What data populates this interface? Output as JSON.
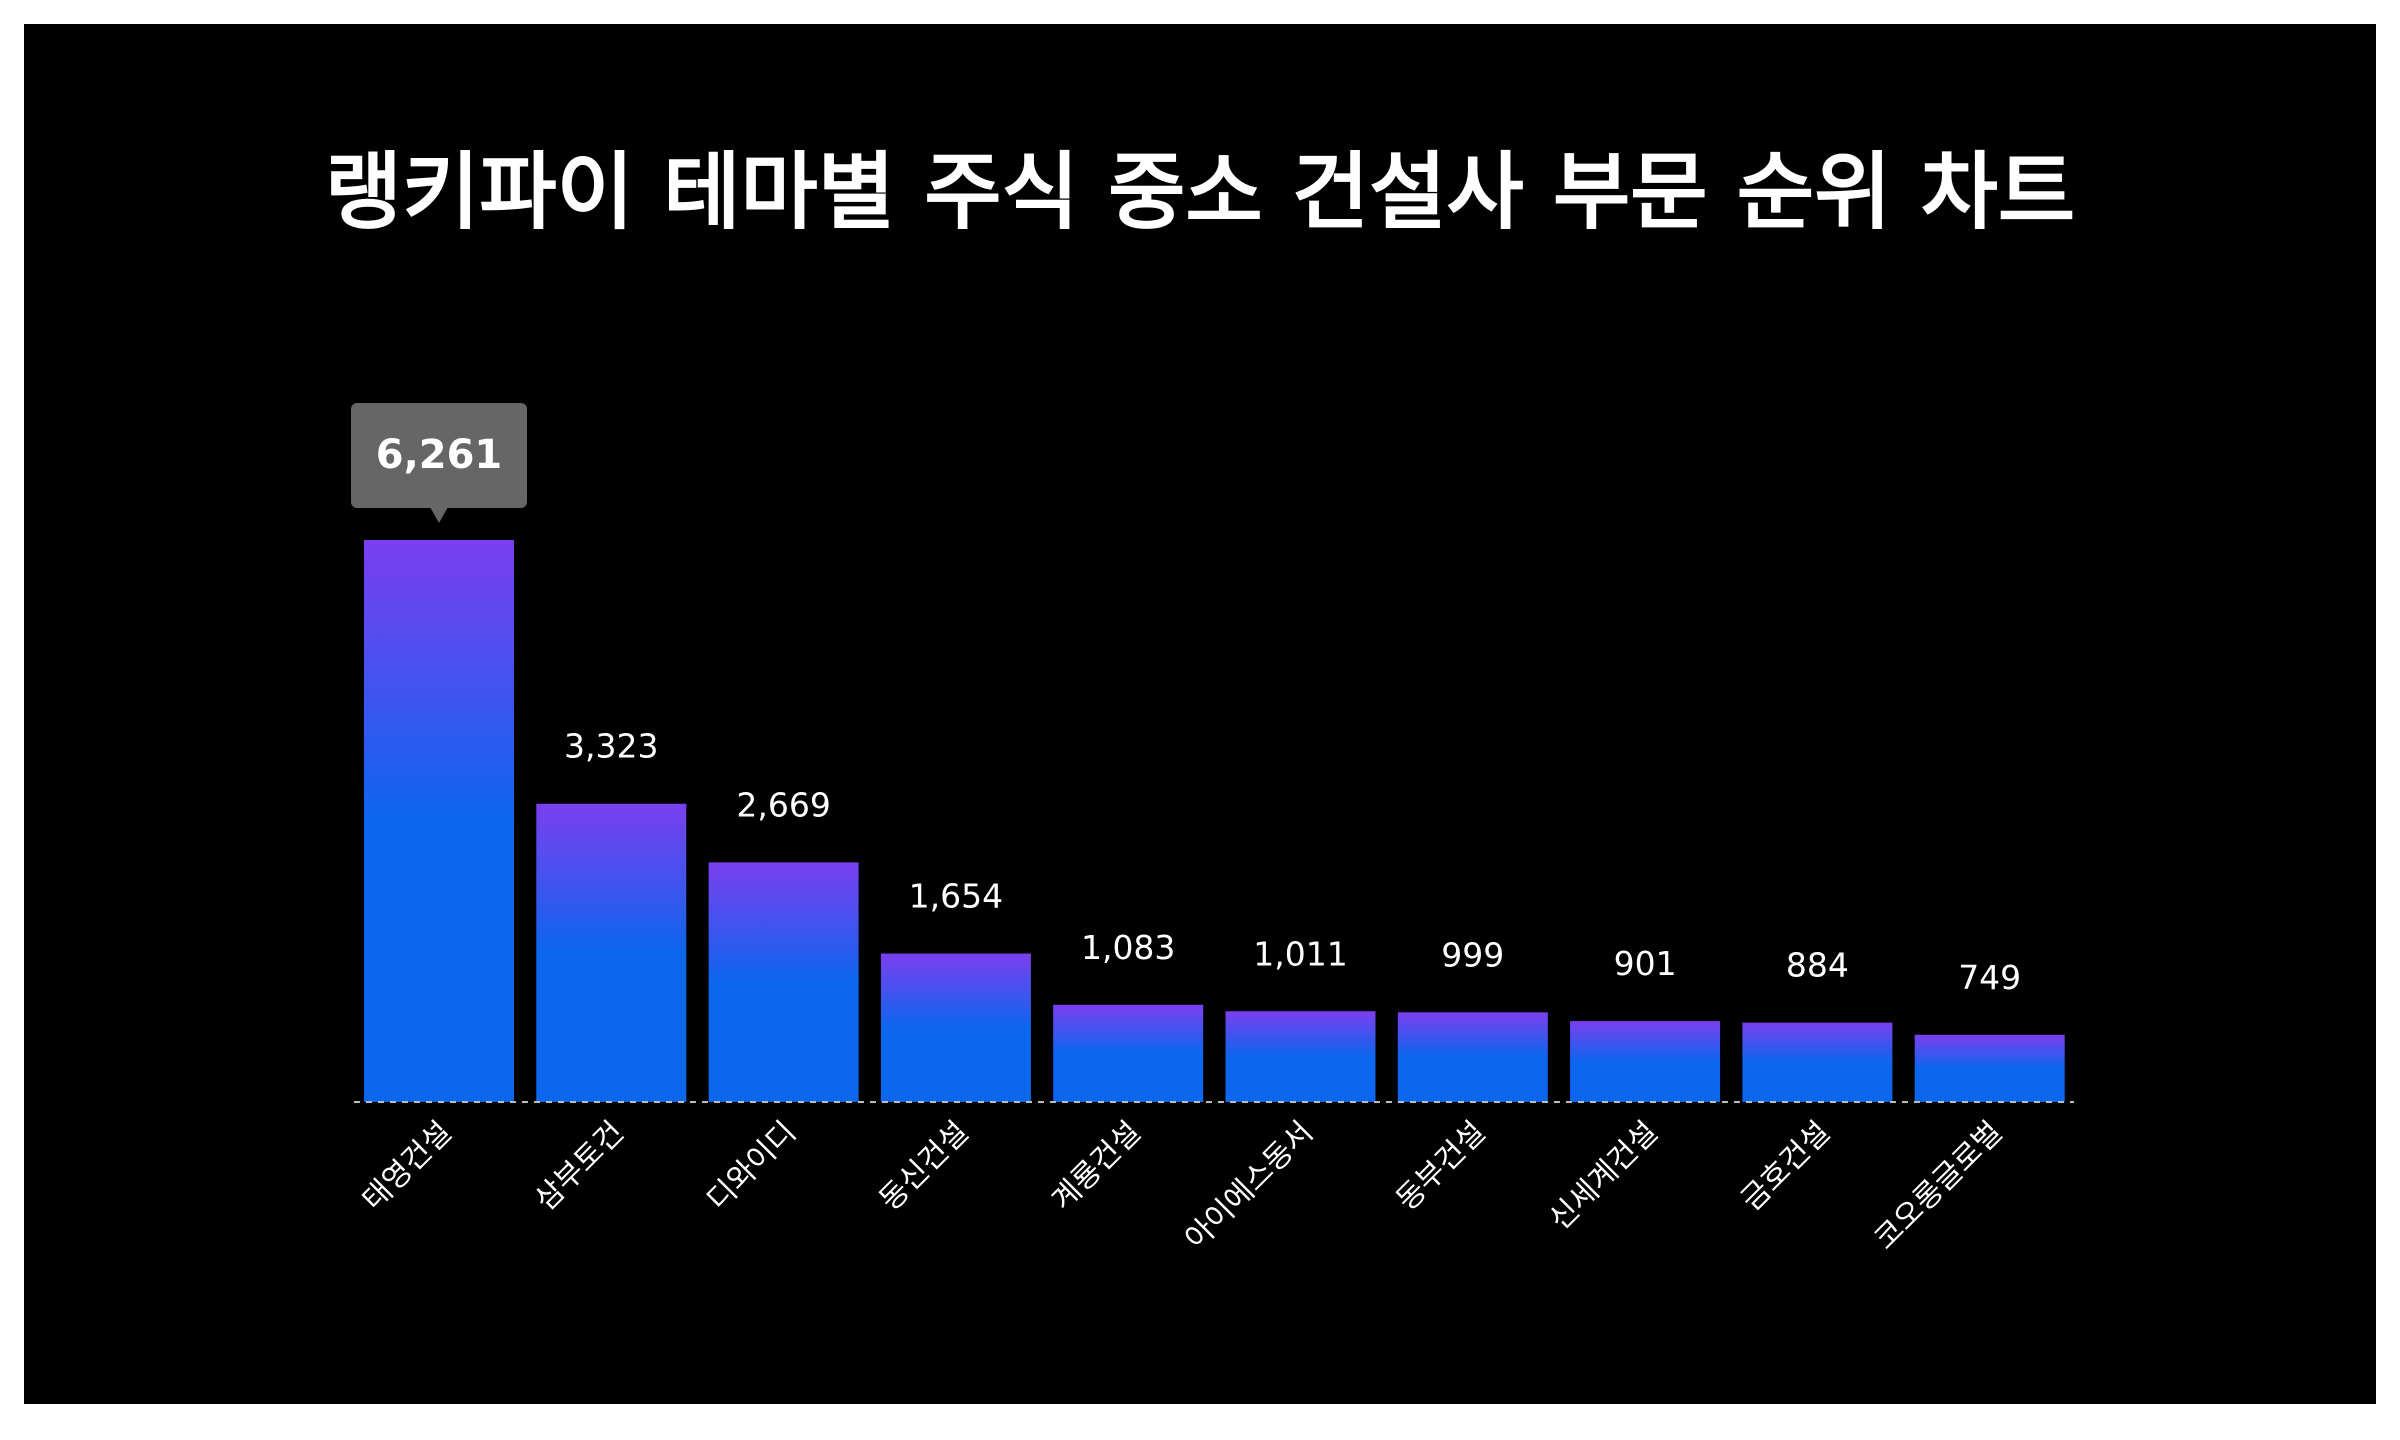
{
  "chart_data": {
    "type": "bar",
    "title": "랭키파이 테마별 주식 중소 건설사 부문 순위 차트",
    "categories": [
      "태영건설",
      "삼부토건",
      "디와이디",
      "동신건설",
      "계룡건설",
      "아이에스동서",
      "동부건설",
      "신세계건설",
      "금호건설",
      "코오롱글로벌"
    ],
    "values": [
      6261,
      3323,
      2669,
      1654,
      1083,
      1011,
      999,
      901,
      884,
      749
    ],
    "value_labels": [
      "6,261",
      "3,323",
      "2,669",
      "1,654",
      "1,083",
      "1,011",
      "999",
      "901",
      "884",
      "749"
    ],
    "highlight_index": 0,
    "grid": false,
    "legend": "none",
    "colors": {
      "background": "#000000",
      "bar_top": "#7b3fef",
      "bar_bottom": "#0c66ee",
      "tooltip": "#666666",
      "text": "#ffffff"
    }
  }
}
